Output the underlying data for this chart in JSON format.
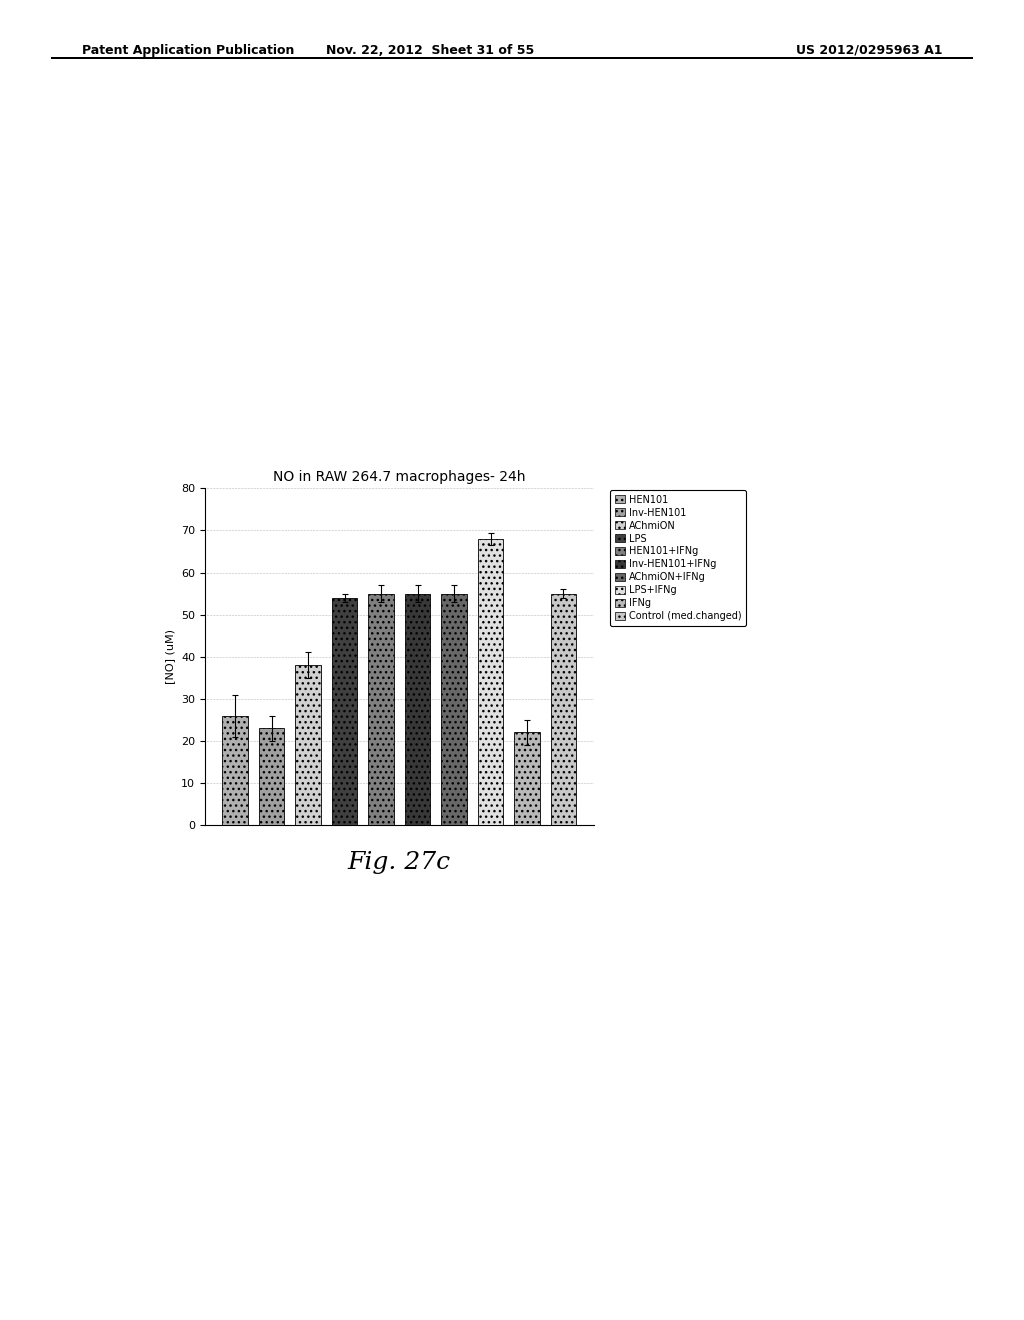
{
  "title": "NO in RAW 264.7 macrophages- 24h",
  "ylabel": "[NO] (uM)",
  "ylim": [
    0,
    80
  ],
  "yticks": [
    0,
    10,
    20,
    30,
    40,
    50,
    60,
    70,
    80
  ],
  "bar_labels": [
    "HEN101",
    "Inv-HEN101",
    "AChmiON",
    "LPS",
    "HEN101+IFNg",
    "Inv-HEN101+IFNg",
    "AChmiON+IFNg",
    "LPS+IFNg",
    "IFNg",
    "Control (med.changed)"
  ],
  "bar_values": [
    26,
    23,
    38,
    54,
    55,
    55,
    55,
    68,
    22,
    55
  ],
  "bar_errors": [
    5,
    3,
    3,
    1,
    2,
    2,
    2,
    1.5,
    3,
    1
  ],
  "bar_colors": [
    "#b0b0b0",
    "#a0a0a0",
    "#d0d0d0",
    "#404040",
    "#808080",
    "#383838",
    "#686868",
    "#e0e0e0",
    "#b8b8b8",
    "#c8c8c8"
  ],
  "bar_hatches": [
    "...",
    "...",
    "...",
    "...",
    "...",
    "...",
    "...",
    "...",
    "...",
    "..."
  ],
  "legend_labels": [
    "HEN101",
    "Inv-HEN101",
    "AChmiON",
    "LPS",
    "HEN101+IFNg",
    "Inv-HEN101+IFNg",
    "AChmiON+IFNg",
    "LPS+IFNg",
    "IFNg",
    "Control (med.changed)"
  ],
  "legend_colors": [
    "#b0b0b0",
    "#a0a0a0",
    "#d0d0d0",
    "#404040",
    "#808080",
    "#383838",
    "#686868",
    "#e0e0e0",
    "#b8b8b8",
    "#c8c8c8"
  ],
  "fig_caption": "Fig. 27c",
  "background_color": "#ffffff",
  "plot_bg_color": "#ffffff",
  "header_left": "Patent Application Publication",
  "header_mid": "Nov. 22, 2012  Sheet 31 of 55",
  "header_right": "US 2012/0295963 A1",
  "title_fontsize": 10,
  "label_fontsize": 8,
  "tick_fontsize": 8,
  "legend_fontsize": 7,
  "caption_fontsize": 18,
  "header_fontsize": 9
}
